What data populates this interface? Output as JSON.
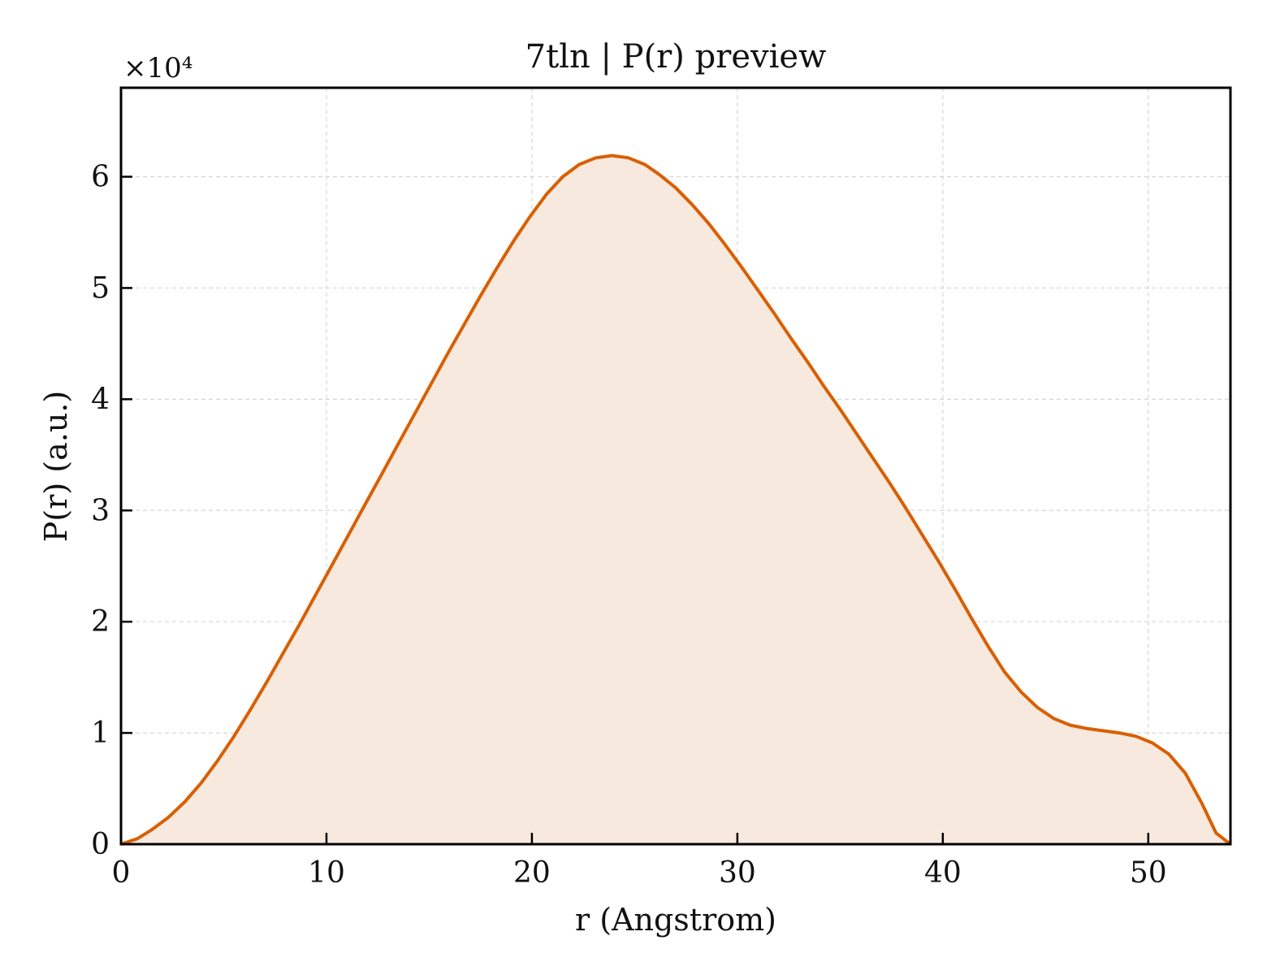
{
  "chart_data": {
    "type": "area",
    "title": "7tln | P(r) preview",
    "xlabel": "r (Angstrom)",
    "ylabel": "P(r) (a.u.)",
    "y_scale_label": "×10⁴",
    "y_multiplier": 10000,
    "xlim": [
      0,
      54
    ],
    "ylim": [
      0,
      6.8
    ],
    "x_ticks": [
      0,
      10,
      20,
      30,
      40,
      50
    ],
    "y_ticks": [
      0,
      1,
      2,
      3,
      4,
      5,
      6
    ],
    "x_tick_labels": [
      "0",
      "10",
      "20",
      "30",
      "40",
      "50"
    ],
    "y_tick_labels": [
      "0",
      "1",
      "2",
      "3",
      "4",
      "5",
      "6"
    ],
    "grid": true,
    "legend": "none",
    "line_color": "#d95f02",
    "fill_color": "#f8e9de",
    "series": [
      {
        "x": [
          0,
          0.8,
          1.5,
          2.3,
          3.1,
          3.9,
          4.7,
          5.5,
          6.3,
          7.1,
          7.9,
          8.7,
          9.5,
          10.3,
          11.1,
          11.9,
          12.7,
          13.5,
          14.3,
          15.1,
          15.9,
          16.7,
          17.5,
          18.3,
          19.1,
          19.9,
          20.7,
          21.5,
          22.3,
          23.1,
          23.9,
          24.7,
          25.5,
          26.2,
          27.0,
          27.8,
          28.6,
          29.4,
          30.2,
          31.0,
          31.8,
          32.6,
          33.4,
          34.2,
          35.0,
          35.8,
          36.6,
          37.4,
          38.2,
          39.0,
          39.8,
          40.6,
          41.4,
          42.2,
          43.0,
          43.8,
          44.6,
          45.4,
          46.2,
          47.0,
          47.8,
          48.6,
          49.4,
          50.2,
          51.0,
          51.8,
          52.6,
          53.3,
          54.0
        ],
        "y": [
          0.0,
          0.05,
          0.13,
          0.24,
          0.38,
          0.55,
          0.75,
          0.97,
          1.21,
          1.46,
          1.72,
          1.98,
          2.25,
          2.52,
          2.79,
          3.06,
          3.33,
          3.6,
          3.87,
          4.14,
          4.41,
          4.67,
          4.93,
          5.18,
          5.42,
          5.64,
          5.84,
          6.0,
          6.11,
          6.17,
          6.19,
          6.17,
          6.11,
          6.02,
          5.9,
          5.75,
          5.58,
          5.39,
          5.19,
          4.98,
          4.77,
          4.55,
          4.34,
          4.12,
          3.91,
          3.69,
          3.47,
          3.25,
          3.02,
          2.78,
          2.54,
          2.29,
          2.03,
          1.78,
          1.55,
          1.37,
          1.23,
          1.13,
          1.07,
          1.04,
          1.02,
          1.0,
          0.97,
          0.91,
          0.81,
          0.64,
          0.37,
          0.1,
          0.0
        ]
      }
    ]
  }
}
